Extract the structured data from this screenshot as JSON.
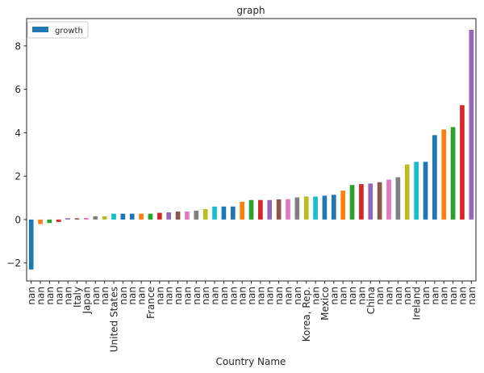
{
  "chart_data": {
    "type": "bar",
    "title": "graph",
    "xlabel": "Country Name",
    "ylabel": "",
    "ylim": [
      -2.83,
      9.26
    ],
    "yticks": [
      -2,
      0,
      2,
      4,
      6,
      8
    ],
    "ytick_labels": [
      "−2",
      "0",
      "2",
      "4",
      "6",
      "8"
    ],
    "grid": false,
    "legend": {
      "placement": "top-left",
      "entries": [
        {
          "label": "growth",
          "color": "#1f77b4"
        }
      ]
    },
    "categories": [
      "nan",
      "nan",
      "nan",
      "nan",
      "nan",
      "Italy",
      "Japan",
      "nan",
      "nan",
      "United States",
      "nan",
      "nan",
      "nan",
      "France",
      "nan",
      "nan",
      "nan",
      "nan",
      "nan",
      "nan",
      "nan",
      "nan",
      "nan",
      "nan",
      "nan",
      "nan",
      "nan",
      "nan",
      "nan",
      "nan",
      "Korea, Rep.",
      "nan",
      "Mexico",
      "nan",
      "nan",
      "nan",
      "nan",
      "China",
      "nan",
      "nan",
      "nan",
      "nan",
      "Ireland",
      "nan",
      "nan",
      "nan",
      "nan",
      "nan",
      "nan"
    ],
    "series": [
      {
        "name": "growth",
        "values": [
          -2.3,
          -0.21,
          -0.16,
          -0.11,
          0.06,
          0.06,
          0.07,
          0.15,
          0.15,
          0.27,
          0.27,
          0.27,
          0.27,
          0.27,
          0.31,
          0.33,
          0.37,
          0.37,
          0.41,
          0.48,
          0.6,
          0.6,
          0.6,
          0.82,
          0.9,
          0.9,
          0.9,
          0.93,
          0.94,
          1.02,
          1.06,
          1.06,
          1.1,
          1.14,
          1.33,
          1.59,
          1.63,
          1.66,
          1.72,
          1.84,
          1.95,
          2.54,
          2.66,
          2.66,
          3.89,
          4.15,
          4.26,
          5.27,
          8.74
        ]
      }
    ],
    "bar_colors": [
      "#1f77b4",
      "#ff7f0e",
      "#2ca02c",
      "#d62728",
      "#9467bd",
      "#8c564b",
      "#e377c2",
      "#7f7f7f",
      "#bcbd22",
      "#17becf",
      "#1f77b4",
      "#1f77b4",
      "#ff7f0e",
      "#2ca02c",
      "#d62728",
      "#9467bd",
      "#8c564b",
      "#e377c2",
      "#7f7f7f",
      "#bcbd22",
      "#17becf",
      "#1f77b4",
      "#1f77b4",
      "#ff7f0e",
      "#2ca02c",
      "#d62728",
      "#9467bd",
      "#8c564b",
      "#e377c2",
      "#7f7f7f",
      "#bcbd22",
      "#17becf",
      "#1f77b4",
      "#1f77b4",
      "#ff7f0e",
      "#2ca02c",
      "#d62728",
      "#9467bd",
      "#8c564b",
      "#e377c2",
      "#7f7f7f",
      "#bcbd22",
      "#17becf",
      "#1f77b4",
      "#1f77b4",
      "#ff7f0e",
      "#2ca02c",
      "#d62728",
      "#9467bd"
    ]
  }
}
